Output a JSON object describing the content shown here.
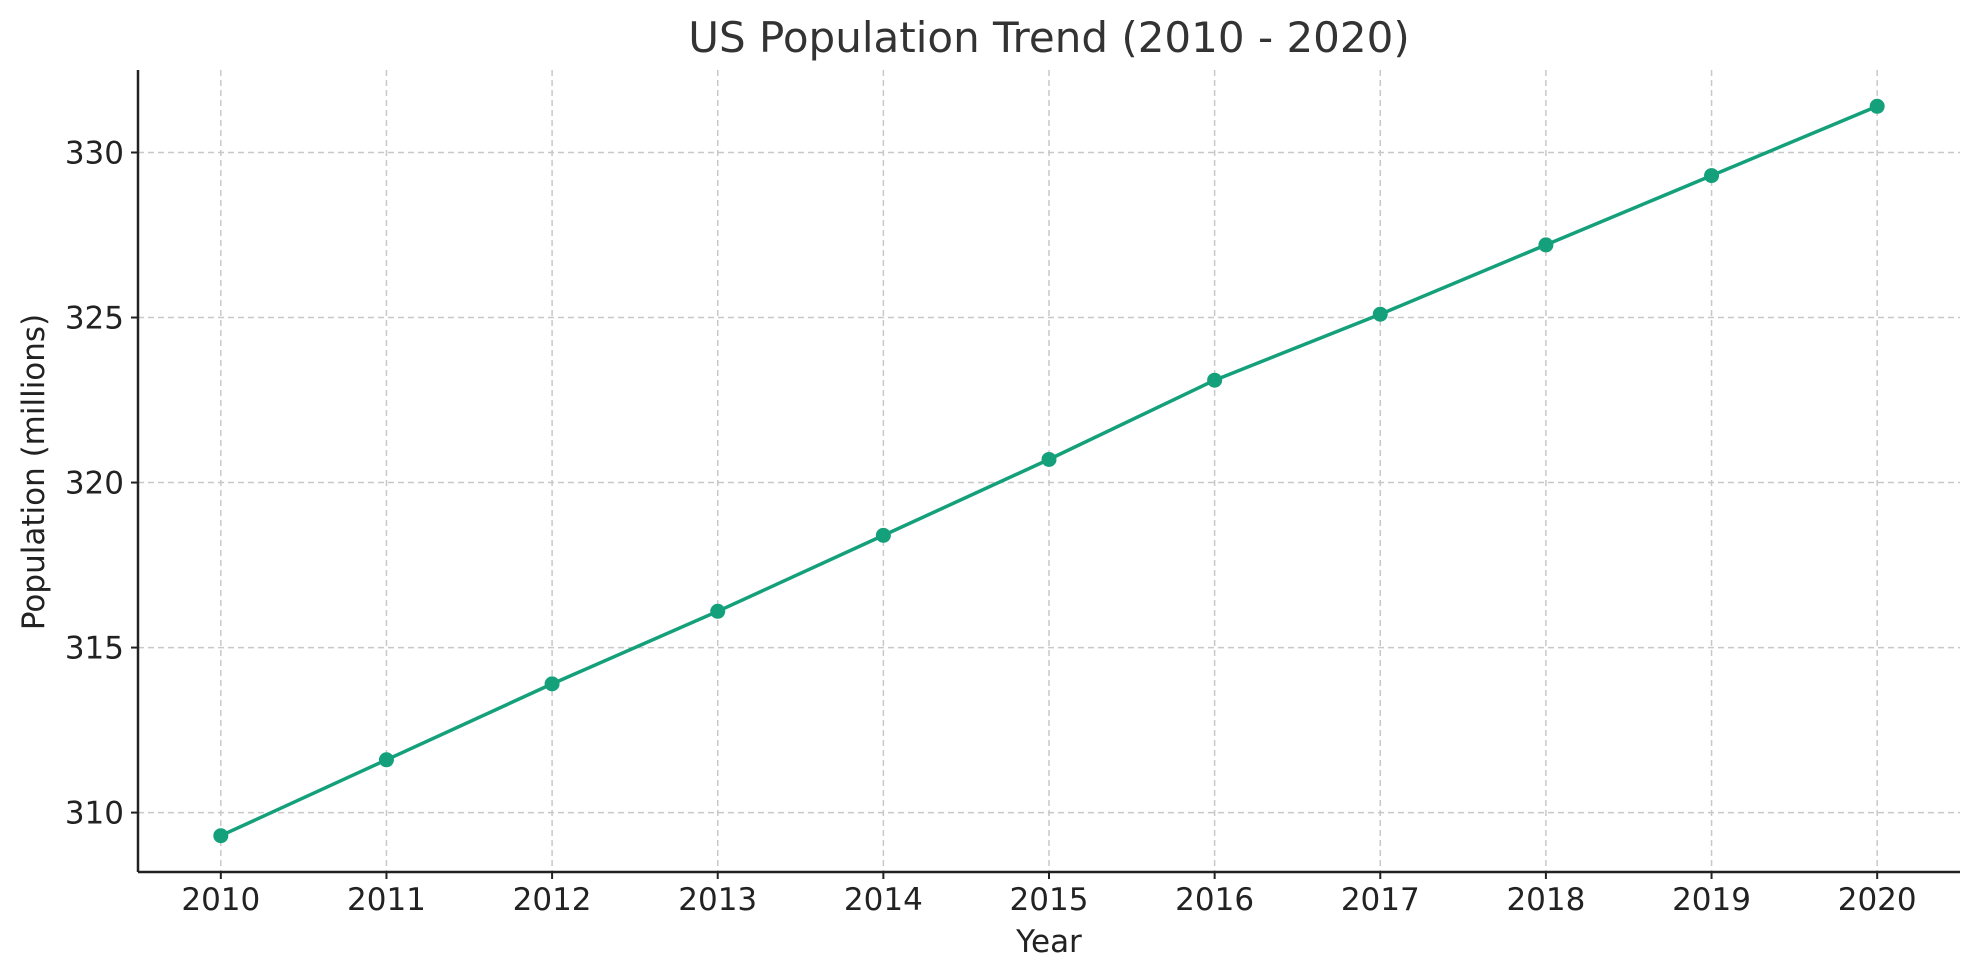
{
  "chart_data": {
    "type": "line",
    "title": "US Population Trend (2010 - 2020)",
    "xlabel": "Year",
    "ylabel": "Population (millions)",
    "x": [
      2010,
      2011,
      2012,
      2013,
      2014,
      2015,
      2016,
      2017,
      2018,
      2019,
      2020
    ],
    "series": [
      {
        "values": [
          309.3,
          311.6,
          313.9,
          316.1,
          318.4,
          320.7,
          323.1,
          325.1,
          327.2,
          329.3,
          331.4
        ],
        "color": "#13a07a",
        "marker": "circle"
      }
    ],
    "xticks": [
      "2010",
      "2011",
      "2012",
      "2013",
      "2014",
      "2015",
      "2016",
      "2017",
      "2018",
      "2019",
      "2020"
    ],
    "yticks": [
      310,
      315,
      320,
      325,
      330
    ],
    "xlim": [
      2009.5,
      2020.5
    ],
    "ylim": [
      308.2,
      332.5
    ],
    "grid": true,
    "legend": "none"
  }
}
